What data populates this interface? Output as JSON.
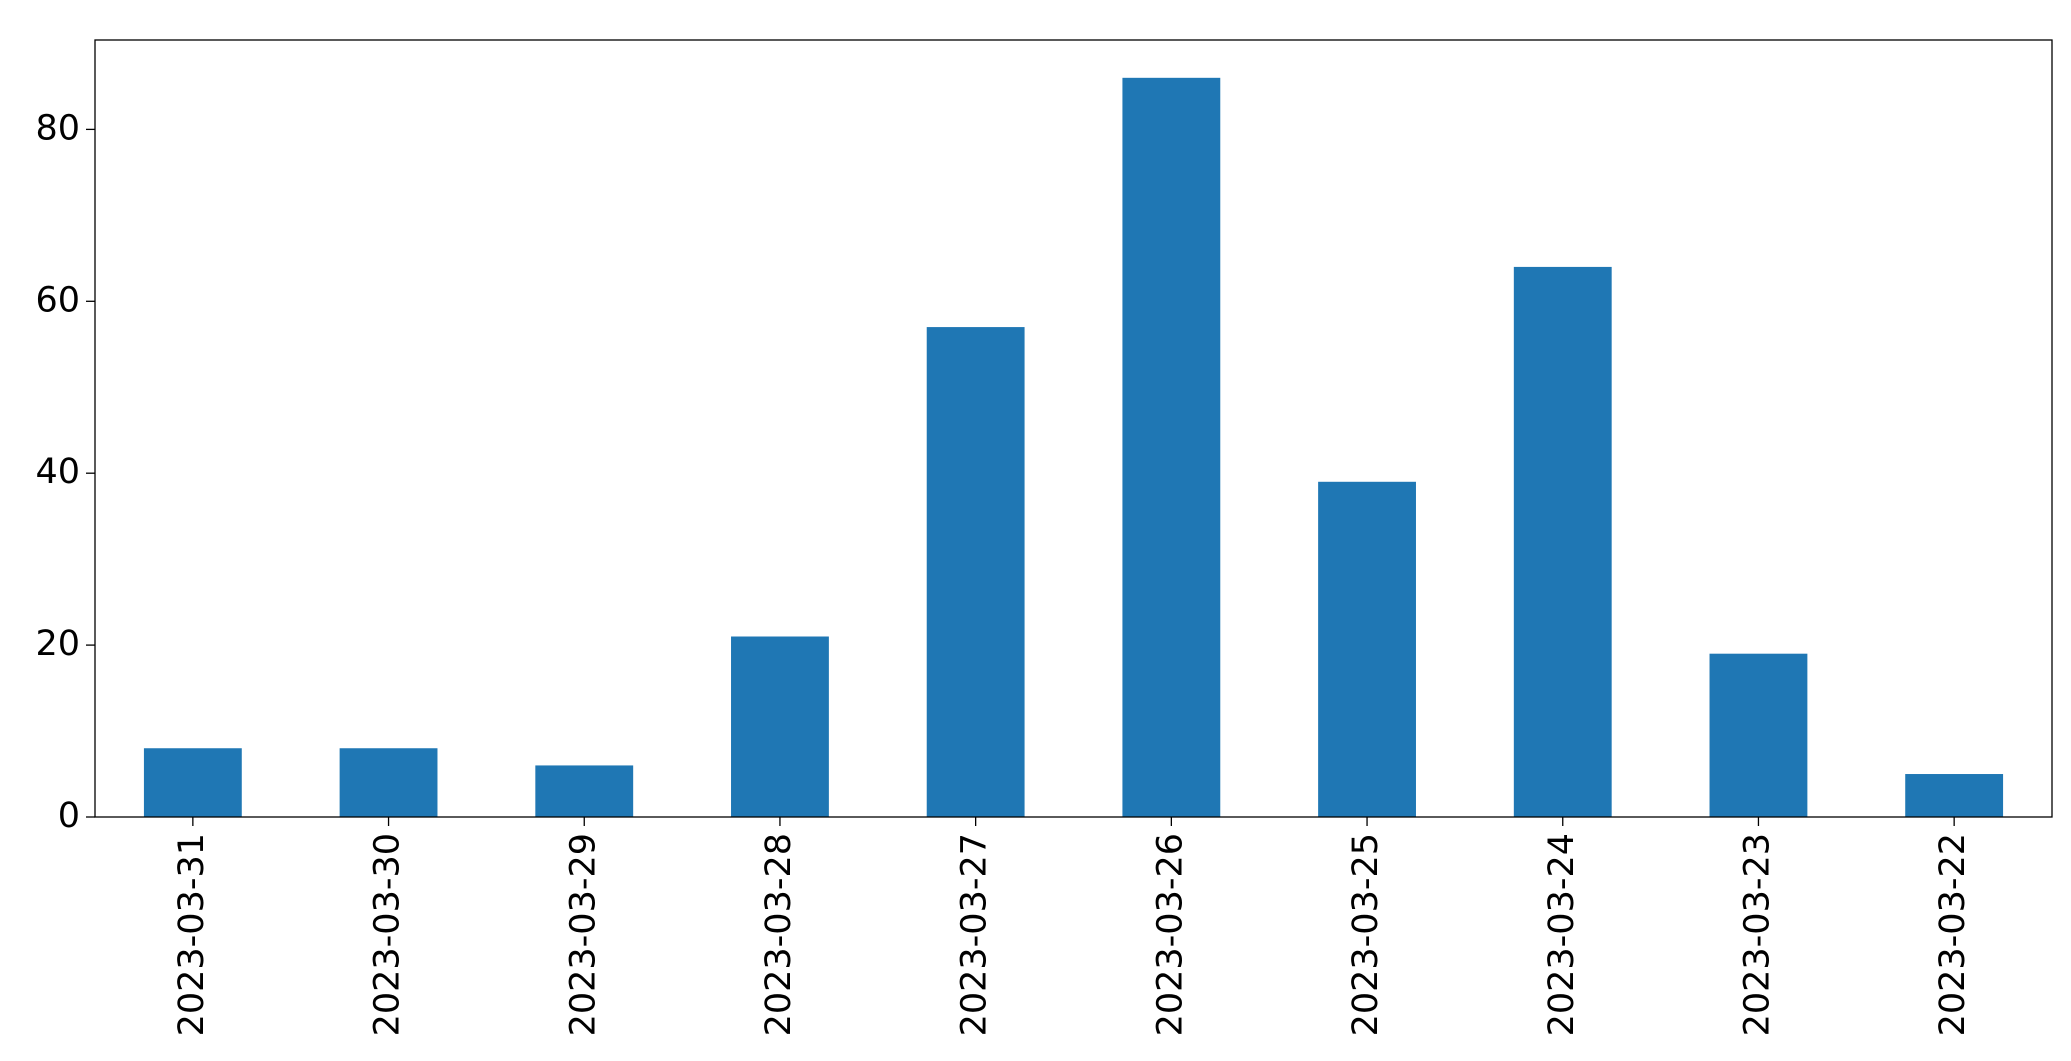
{
  "chart_data": {
    "type": "bar",
    "categories": [
      "2023-03-31",
      "2023-03-30",
      "2023-03-29",
      "2023-03-28",
      "2023-03-27",
      "2023-03-26",
      "2023-03-25",
      "2023-03-24",
      "2023-03-23",
      "2023-03-22"
    ],
    "values": [
      8,
      8,
      6,
      21,
      57,
      86,
      39,
      64,
      19,
      5
    ],
    "color": "#1f77b4",
    "ylim": [
      0,
      90.4
    ],
    "yticks": [
      0,
      20,
      40,
      60,
      80
    ],
    "grid": false
  }
}
